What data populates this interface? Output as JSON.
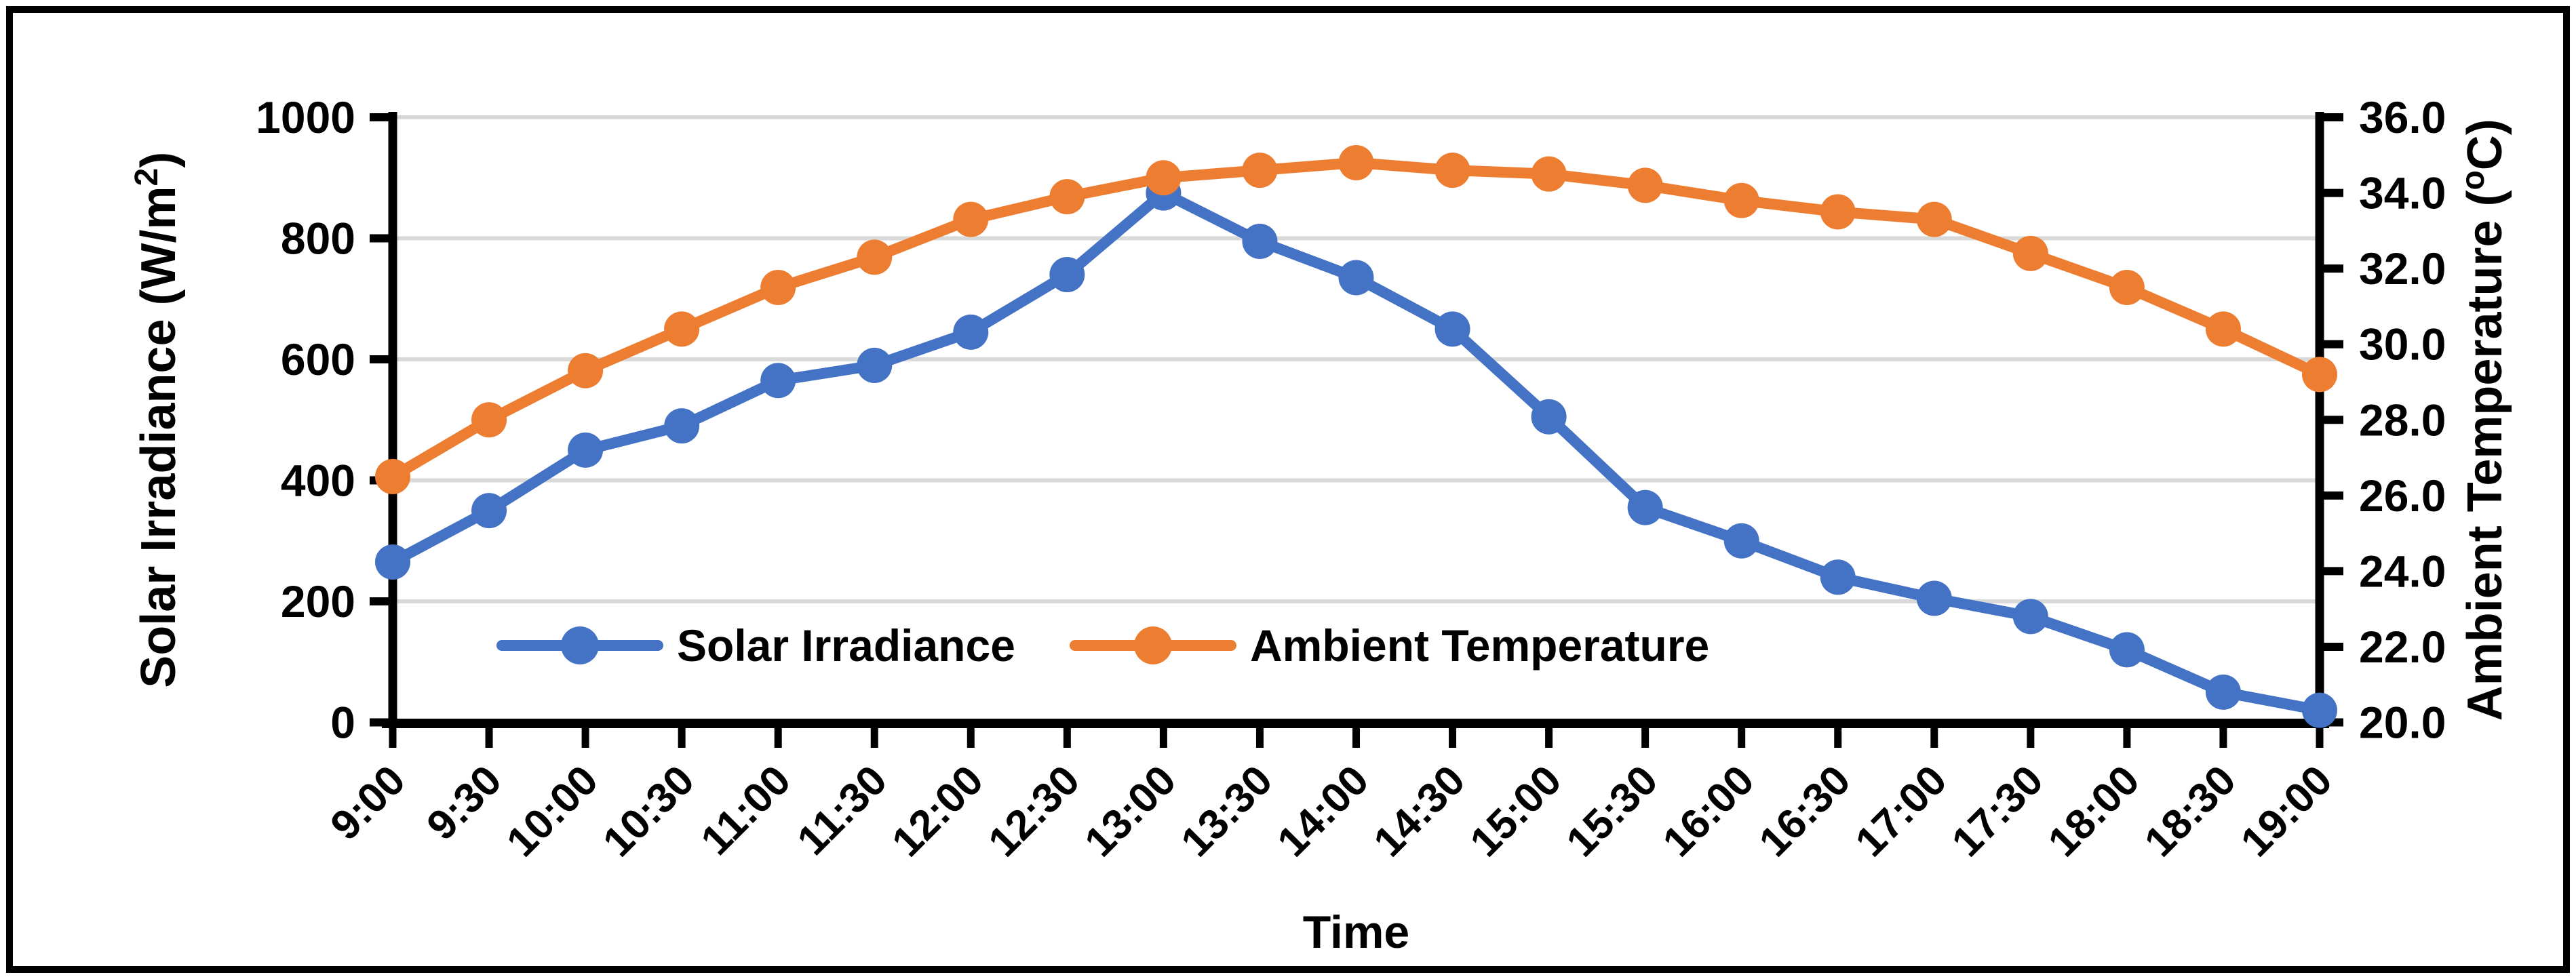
{
  "chart_data": {
    "type": "line",
    "title": "",
    "xlabel": "Time",
    "x": [
      "9:00",
      "9:30",
      "10:00",
      "10:30",
      "11:00",
      "11:30",
      "12:00",
      "12:30",
      "13:00",
      "13:30",
      "14:00",
      "14:30",
      "15:00",
      "15:30",
      "16:00",
      "16:30",
      "17:00",
      "17:30",
      "18:00",
      "18:30",
      "19:00"
    ],
    "series": [
      {
        "name": "Solar Irradiance",
        "color": "#4472C4",
        "axis": "left",
        "values": [
          265,
          350,
          450,
          490,
          565,
          590,
          645,
          740,
          875,
          795,
          735,
          650,
          505,
          355,
          300,
          240,
          205,
          175,
          120,
          50,
          20
        ]
      },
      {
        "name": "Ambient Temperature",
        "color": "#ED7D31",
        "axis": "right",
        "values": [
          26.5,
          28.0,
          29.3,
          30.4,
          31.5,
          32.3,
          33.3,
          33.9,
          34.4,
          34.6,
          34.8,
          34.6,
          34.5,
          34.2,
          33.8,
          33.5,
          33.3,
          32.4,
          31.5,
          30.4,
          29.2
        ]
      }
    ],
    "left_axis": {
      "title": "Solar Irradiance (W/m²)",
      "title_main": "Solar Irradiance (W/m",
      "title_sup": "2",
      "title_end": ")",
      "min": 0,
      "max": 1000,
      "step": 200,
      "tick_labels": [
        "0",
        "200",
        "400",
        "600",
        "800",
        "1000"
      ]
    },
    "right_axis": {
      "title": "Ambient Temperature (°C)",
      "title_main": "Ambient Temperature (",
      "title_sup": "o",
      "title_end": "C)",
      "min": 20,
      "max": 36,
      "step": 2,
      "tick_labels": [
        "20.0",
        "22.0",
        "24.0",
        "26.0",
        "28.0",
        "30.0",
        "32.0",
        "34.0",
        "36.0"
      ]
    },
    "legend": {
      "position": "bottom-inside",
      "entries": [
        "Solar Irradiance",
        "Ambient Temperature"
      ]
    },
    "grid": {
      "visible": true,
      "color": "#D9D9D9"
    },
    "axis_color": "#000000",
    "frame_color": "#000000",
    "background": "#FFFFFF"
  }
}
